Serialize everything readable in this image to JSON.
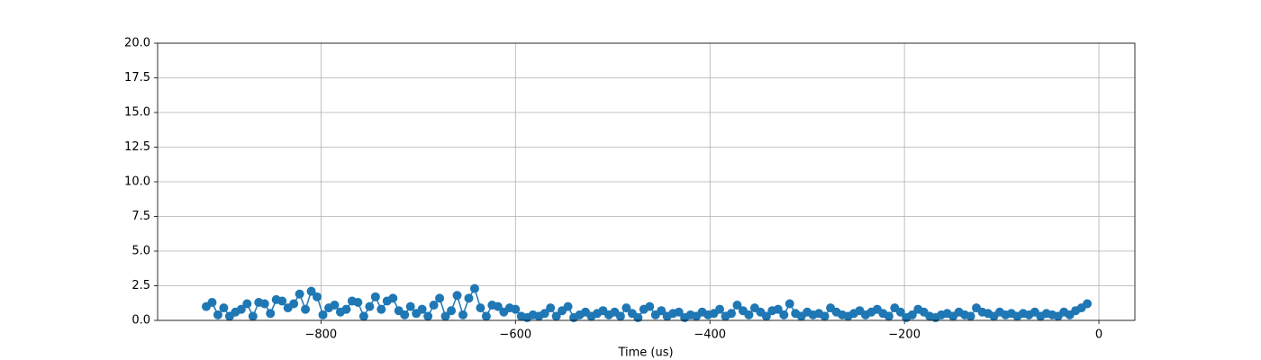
{
  "chart_data": {
    "type": "line",
    "xlabel": "Time (us)",
    "grid": true,
    "xlim": [
      -968,
      37
    ],
    "ylim": [
      0,
      20
    ],
    "xticks": [
      {
        "value": -800,
        "label": "−800"
      },
      {
        "value": -600,
        "label": "−600"
      },
      {
        "value": -400,
        "label": "−400"
      },
      {
        "value": -200,
        "label": "−200"
      },
      0
    ],
    "yticks": [
      {
        "value": 0,
        "label": "0.0"
      },
      2.5,
      {
        "value": 5,
        "label": "5.0"
      },
      7.5,
      {
        "value": 10,
        "label": "10.0"
      },
      12.5,
      {
        "value": 15,
        "label": "15.0"
      },
      17.5,
      {
        "value": 20,
        "label": "20.0"
      }
    ],
    "x": [
      -918,
      -912,
      -906,
      -900,
      -894,
      -888,
      -882,
      -876,
      -870,
      -864,
      -858,
      -852,
      -846,
      -840,
      -834,
      -828,
      -822,
      -816,
      -810,
      -804,
      -798,
      -792,
      -786,
      -780,
      -774,
      -768,
      -762,
      -756,
      -750,
      -744,
      -738,
      -732,
      -726,
      -720,
      -714,
      -708,
      -702,
      -696,
      -690,
      -684,
      -678,
      -672,
      -666,
      -660,
      -654,
      -648,
      -642,
      -636,
      -630,
      -624,
      -618,
      -612,
      -606,
      -600,
      -594,
      -588,
      -582,
      -576,
      -570,
      -564,
      -558,
      -552,
      -546,
      -540,
      -534,
      -528,
      -522,
      -516,
      -510,
      -504,
      -498,
      -492,
      -486,
      -480,
      -474,
      -468,
      -462,
      -456,
      -450,
      -444,
      -438,
      -432,
      -426,
      -420,
      -414,
      -408,
      -402,
      -396,
      -390,
      -384,
      -378,
      -372,
      -366,
      -360,
      -354,
      -348,
      -342,
      -336,
      -330,
      -324,
      -318,
      -312,
      -306,
      -300,
      -294,
      -288,
      -282,
      -276,
      -270,
      -264,
      -258,
      -252,
      -246,
      -240,
      -234,
      -228,
      -222,
      -216,
      -210,
      -204,
      -198,
      -192,
      -186,
      -180,
      -174,
      -168,
      -162,
      -156,
      -150,
      -144,
      -138,
      -132,
      -126,
      -120,
      -114,
      -108,
      -102,
      -96,
      -90,
      -84,
      -78,
      -72,
      -66,
      -60,
      -54,
      -48,
      -42,
      -36,
      -30,
      -24,
      -18,
      -12
    ],
    "series": [
      {
        "color": "#1f77b4",
        "values": [
          1.0,
          1.3,
          0.4,
          0.9,
          0.3,
          0.6,
          0.8,
          1.2,
          0.3,
          1.3,
          1.2,
          0.5,
          1.5,
          1.4,
          0.9,
          1.2,
          1.9,
          0.8,
          2.1,
          1.7,
          0.4,
          0.9,
          1.1,
          0.6,
          0.8,
          1.4,
          1.3,
          0.3,
          1.0,
          1.7,
          0.8,
          1.4,
          1.6,
          0.7,
          0.4,
          1.0,
          0.5,
          0.8,
          0.3,
          1.1,
          1.6,
          0.3,
          0.7,
          1.8,
          0.4,
          1.6,
          2.3,
          0.9,
          0.3,
          1.1,
          1.0,
          0.6,
          0.9,
          0.8,
          0.3,
          0.2,
          0.4,
          0.3,
          0.5,
          0.9,
          0.3,
          0.7,
          1.0,
          0.2,
          0.4,
          0.6,
          0.3,
          0.5,
          0.7,
          0.4,
          0.6,
          0.3,
          0.9,
          0.5,
          0.2,
          0.8,
          1.0,
          0.4,
          0.7,
          0.3,
          0.5,
          0.6,
          0.2,
          0.4,
          0.3,
          0.6,
          0.4,
          0.5,
          0.8,
          0.3,
          0.5,
          1.1,
          0.7,
          0.4,
          0.9,
          0.6,
          0.3,
          0.7,
          0.8,
          0.4,
          1.2,
          0.5,
          0.3,
          0.6,
          0.4,
          0.5,
          0.3,
          0.9,
          0.6,
          0.4,
          0.3,
          0.5,
          0.7,
          0.4,
          0.6,
          0.8,
          0.5,
          0.3,
          0.9,
          0.6,
          0.2,
          0.4,
          0.8,
          0.6,
          0.3,
          0.2,
          0.4,
          0.5,
          0.3,
          0.6,
          0.4,
          0.3,
          0.9,
          0.6,
          0.5,
          0.3,
          0.6,
          0.4,
          0.5,
          0.3,
          0.5,
          0.4,
          0.6,
          0.3,
          0.5,
          0.4,
          0.3,
          0.6,
          0.4,
          0.7,
          0.9,
          1.2
        ]
      }
    ]
  }
}
